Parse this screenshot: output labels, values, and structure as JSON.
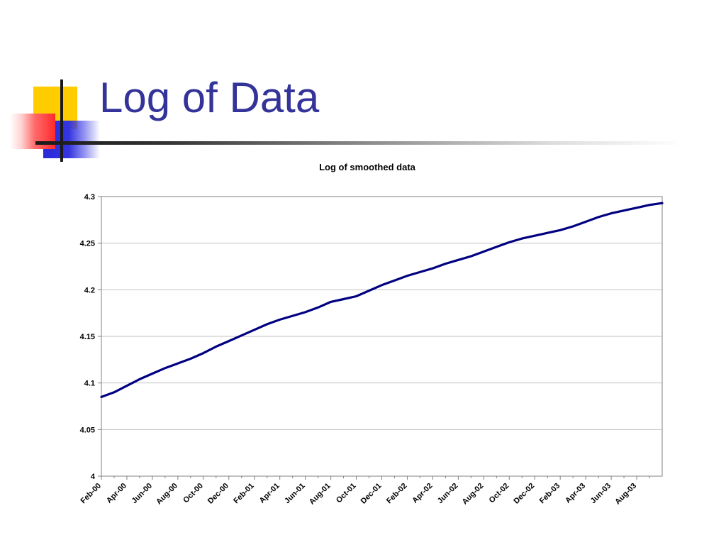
{
  "slide": {
    "title": "Log of Data"
  },
  "colors": {
    "title": "#333399",
    "line": "#000080",
    "grid": "#c0c0c0",
    "deco_yellow": "#ffcc00",
    "deco_blue": "#2a2ad8",
    "deco_red": "#ff2a2a"
  },
  "chart_data": {
    "type": "line",
    "title": "Log of smoothed data",
    "xlabel": "",
    "ylabel": "",
    "ylim": [
      4,
      4.3
    ],
    "yticks": [
      "4",
      "4.05",
      "4.1",
      "4.15",
      "4.2",
      "4.25",
      "4.3"
    ],
    "grid": true,
    "legend": "none",
    "categories": [
      "Feb-00",
      "Apr-00",
      "Jun-00",
      "Aug-00",
      "Oct-00",
      "Dec-00",
      "Feb-01",
      "Apr-01",
      "Jun-01",
      "Aug-01",
      "Oct-01",
      "Dec-01",
      "Feb-02",
      "Apr-02",
      "Jun-02",
      "Aug-02",
      "Oct-02",
      "Dec-02",
      "Feb-03",
      "Apr-03",
      "Jun-03",
      "Aug-03"
    ],
    "series": [
      {
        "x": [
          "Feb-00",
          "Mar-00",
          "Apr-00",
          "May-00",
          "Jun-00",
          "Jul-00",
          "Aug-00",
          "Sep-00",
          "Oct-00",
          "Nov-00",
          "Dec-00",
          "Jan-01",
          "Feb-01",
          "Mar-01",
          "Apr-01",
          "May-01",
          "Jun-01",
          "Jul-01",
          "Aug-01",
          "Sep-01",
          "Oct-01",
          "Nov-01",
          "Dec-01",
          "Jan-02",
          "Feb-02",
          "Mar-02",
          "Apr-02",
          "May-02",
          "Jun-02",
          "Jul-02",
          "Aug-02",
          "Sep-02",
          "Oct-02",
          "Nov-02",
          "Dec-02",
          "Jan-03",
          "Feb-03",
          "Mar-03",
          "Apr-03",
          "May-03",
          "Jun-03",
          "Jul-03",
          "Aug-03",
          "Sep-03",
          "Oct-03"
        ],
        "values": [
          4.085,
          4.09,
          4.097,
          4.104,
          4.11,
          4.116,
          4.121,
          4.126,
          4.132,
          4.139,
          4.145,
          4.151,
          4.157,
          4.163,
          4.168,
          4.172,
          4.176,
          4.181,
          4.187,
          4.19,
          4.193,
          4.199,
          4.205,
          4.21,
          4.215,
          4.219,
          4.223,
          4.228,
          4.232,
          4.236,
          4.241,
          4.246,
          4.251,
          4.255,
          4.258,
          4.261,
          4.264,
          4.268,
          4.273,
          4.278,
          4.282,
          4.285,
          4.288,
          4.291,
          4.293
        ]
      }
    ]
  }
}
